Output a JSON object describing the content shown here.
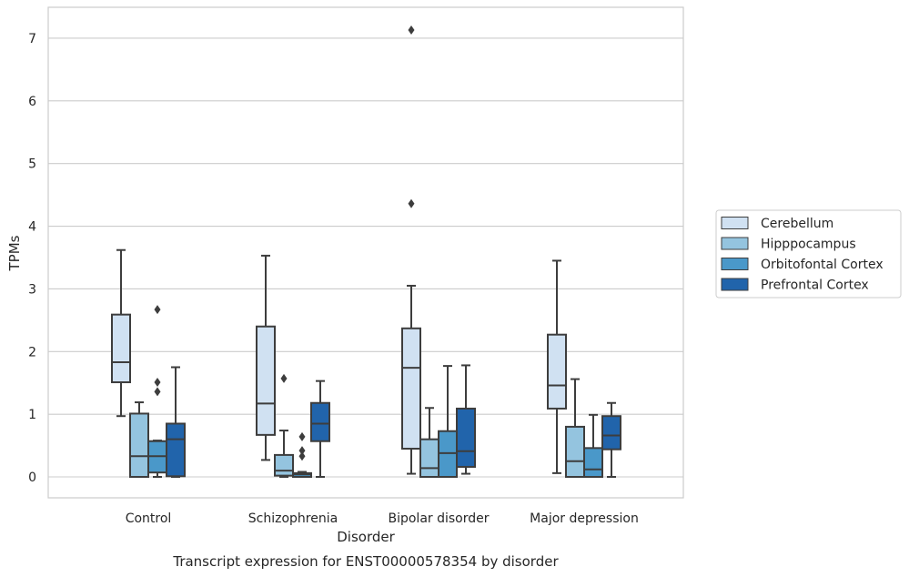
{
  "chart_data": {
    "type": "box",
    "title": "Transcript expression for ENST00000578354 by disorder",
    "xlabel": "Disorder",
    "ylabel": "TPMs",
    "categories": [
      "Control",
      "Schizophrenia",
      "Bipolar disorder",
      "Major depression"
    ],
    "ylim": [
      -0.35,
      7.5
    ],
    "yticks": [
      0,
      1,
      2,
      3,
      4,
      5,
      6,
      7
    ],
    "ytick_labels": [
      "0",
      "1",
      "2",
      "3",
      "4",
      "5",
      "6",
      "7"
    ],
    "grid": true,
    "legend_position": "right",
    "series": [
      {
        "name": "Cerebellum",
        "color": "#d0e1f2",
        "boxes": [
          {
            "whislo": 0.97,
            "q1": 1.51,
            "med": 1.83,
            "q3": 2.59,
            "whishi": 3.62,
            "fliers": []
          },
          {
            "whislo": 0.27,
            "q1": 0.67,
            "med": 1.17,
            "q3": 2.4,
            "whishi": 3.53,
            "fliers": []
          },
          {
            "whislo": 0.05,
            "q1": 0.45,
            "med": 1.74,
            "q3": 2.37,
            "whishi": 3.05,
            "fliers": [
              4.36,
              7.13
            ]
          },
          {
            "whislo": 0.06,
            "q1": 1.09,
            "med": 1.46,
            "q3": 2.27,
            "whishi": 3.45,
            "fliers": []
          }
        ]
      },
      {
        "name": "Hipppocampus",
        "color": "#94c4df",
        "boxes": [
          {
            "whislo": 0.0,
            "q1": 0.0,
            "med": 0.33,
            "q3": 1.01,
            "whishi": 1.19,
            "fliers": []
          },
          {
            "whislo": 0.0,
            "q1": 0.02,
            "med": 0.1,
            "q3": 0.35,
            "whishi": 0.74,
            "fliers": [
              1.57
            ]
          },
          {
            "whislo": 0.0,
            "q1": 0.0,
            "med": 0.14,
            "q3": 0.6,
            "whishi": 1.1,
            "fliers": []
          },
          {
            "whislo": 0.0,
            "q1": 0.0,
            "med": 0.25,
            "q3": 0.8,
            "whishi": 1.56,
            "fliers": []
          }
        ]
      },
      {
        "name": "Orbitofontal Cortex",
        "color": "#4a98c9",
        "boxes": [
          {
            "whislo": 0.0,
            "q1": 0.07,
            "med": 0.33,
            "q3": 0.57,
            "whishi": 0.58,
            "fliers": [
              1.36,
              1.51,
              2.67
            ]
          },
          {
            "whislo": 0.0,
            "q1": 0.0,
            "med": 0.04,
            "q3": 0.06,
            "whishi": 0.08,
            "fliers": [
              0.33,
              0.42,
              0.64
            ]
          },
          {
            "whislo": 0.0,
            "q1": 0.0,
            "med": 0.38,
            "q3": 0.73,
            "whishi": 1.77,
            "fliers": []
          },
          {
            "whislo": 0.0,
            "q1": 0.0,
            "med": 0.12,
            "q3": 0.46,
            "whishi": 0.99,
            "fliers": []
          }
        ]
      },
      {
        "name": "Prefrontal Cortex",
        "color": "#2164ab",
        "boxes": [
          {
            "whislo": 0.0,
            "q1": 0.01,
            "med": 0.6,
            "q3": 0.85,
            "whishi": 1.75,
            "fliers": []
          },
          {
            "whislo": 0.0,
            "q1": 0.57,
            "med": 0.85,
            "q3": 1.18,
            "whishi": 1.53,
            "fliers": []
          },
          {
            "whislo": 0.05,
            "q1": 0.16,
            "med": 0.41,
            "q3": 1.09,
            "whishi": 1.78,
            "fliers": []
          },
          {
            "whislo": 0.0,
            "q1": 0.44,
            "med": 0.66,
            "q3": 0.97,
            "whishi": 1.18,
            "fliers": []
          }
        ]
      }
    ]
  }
}
